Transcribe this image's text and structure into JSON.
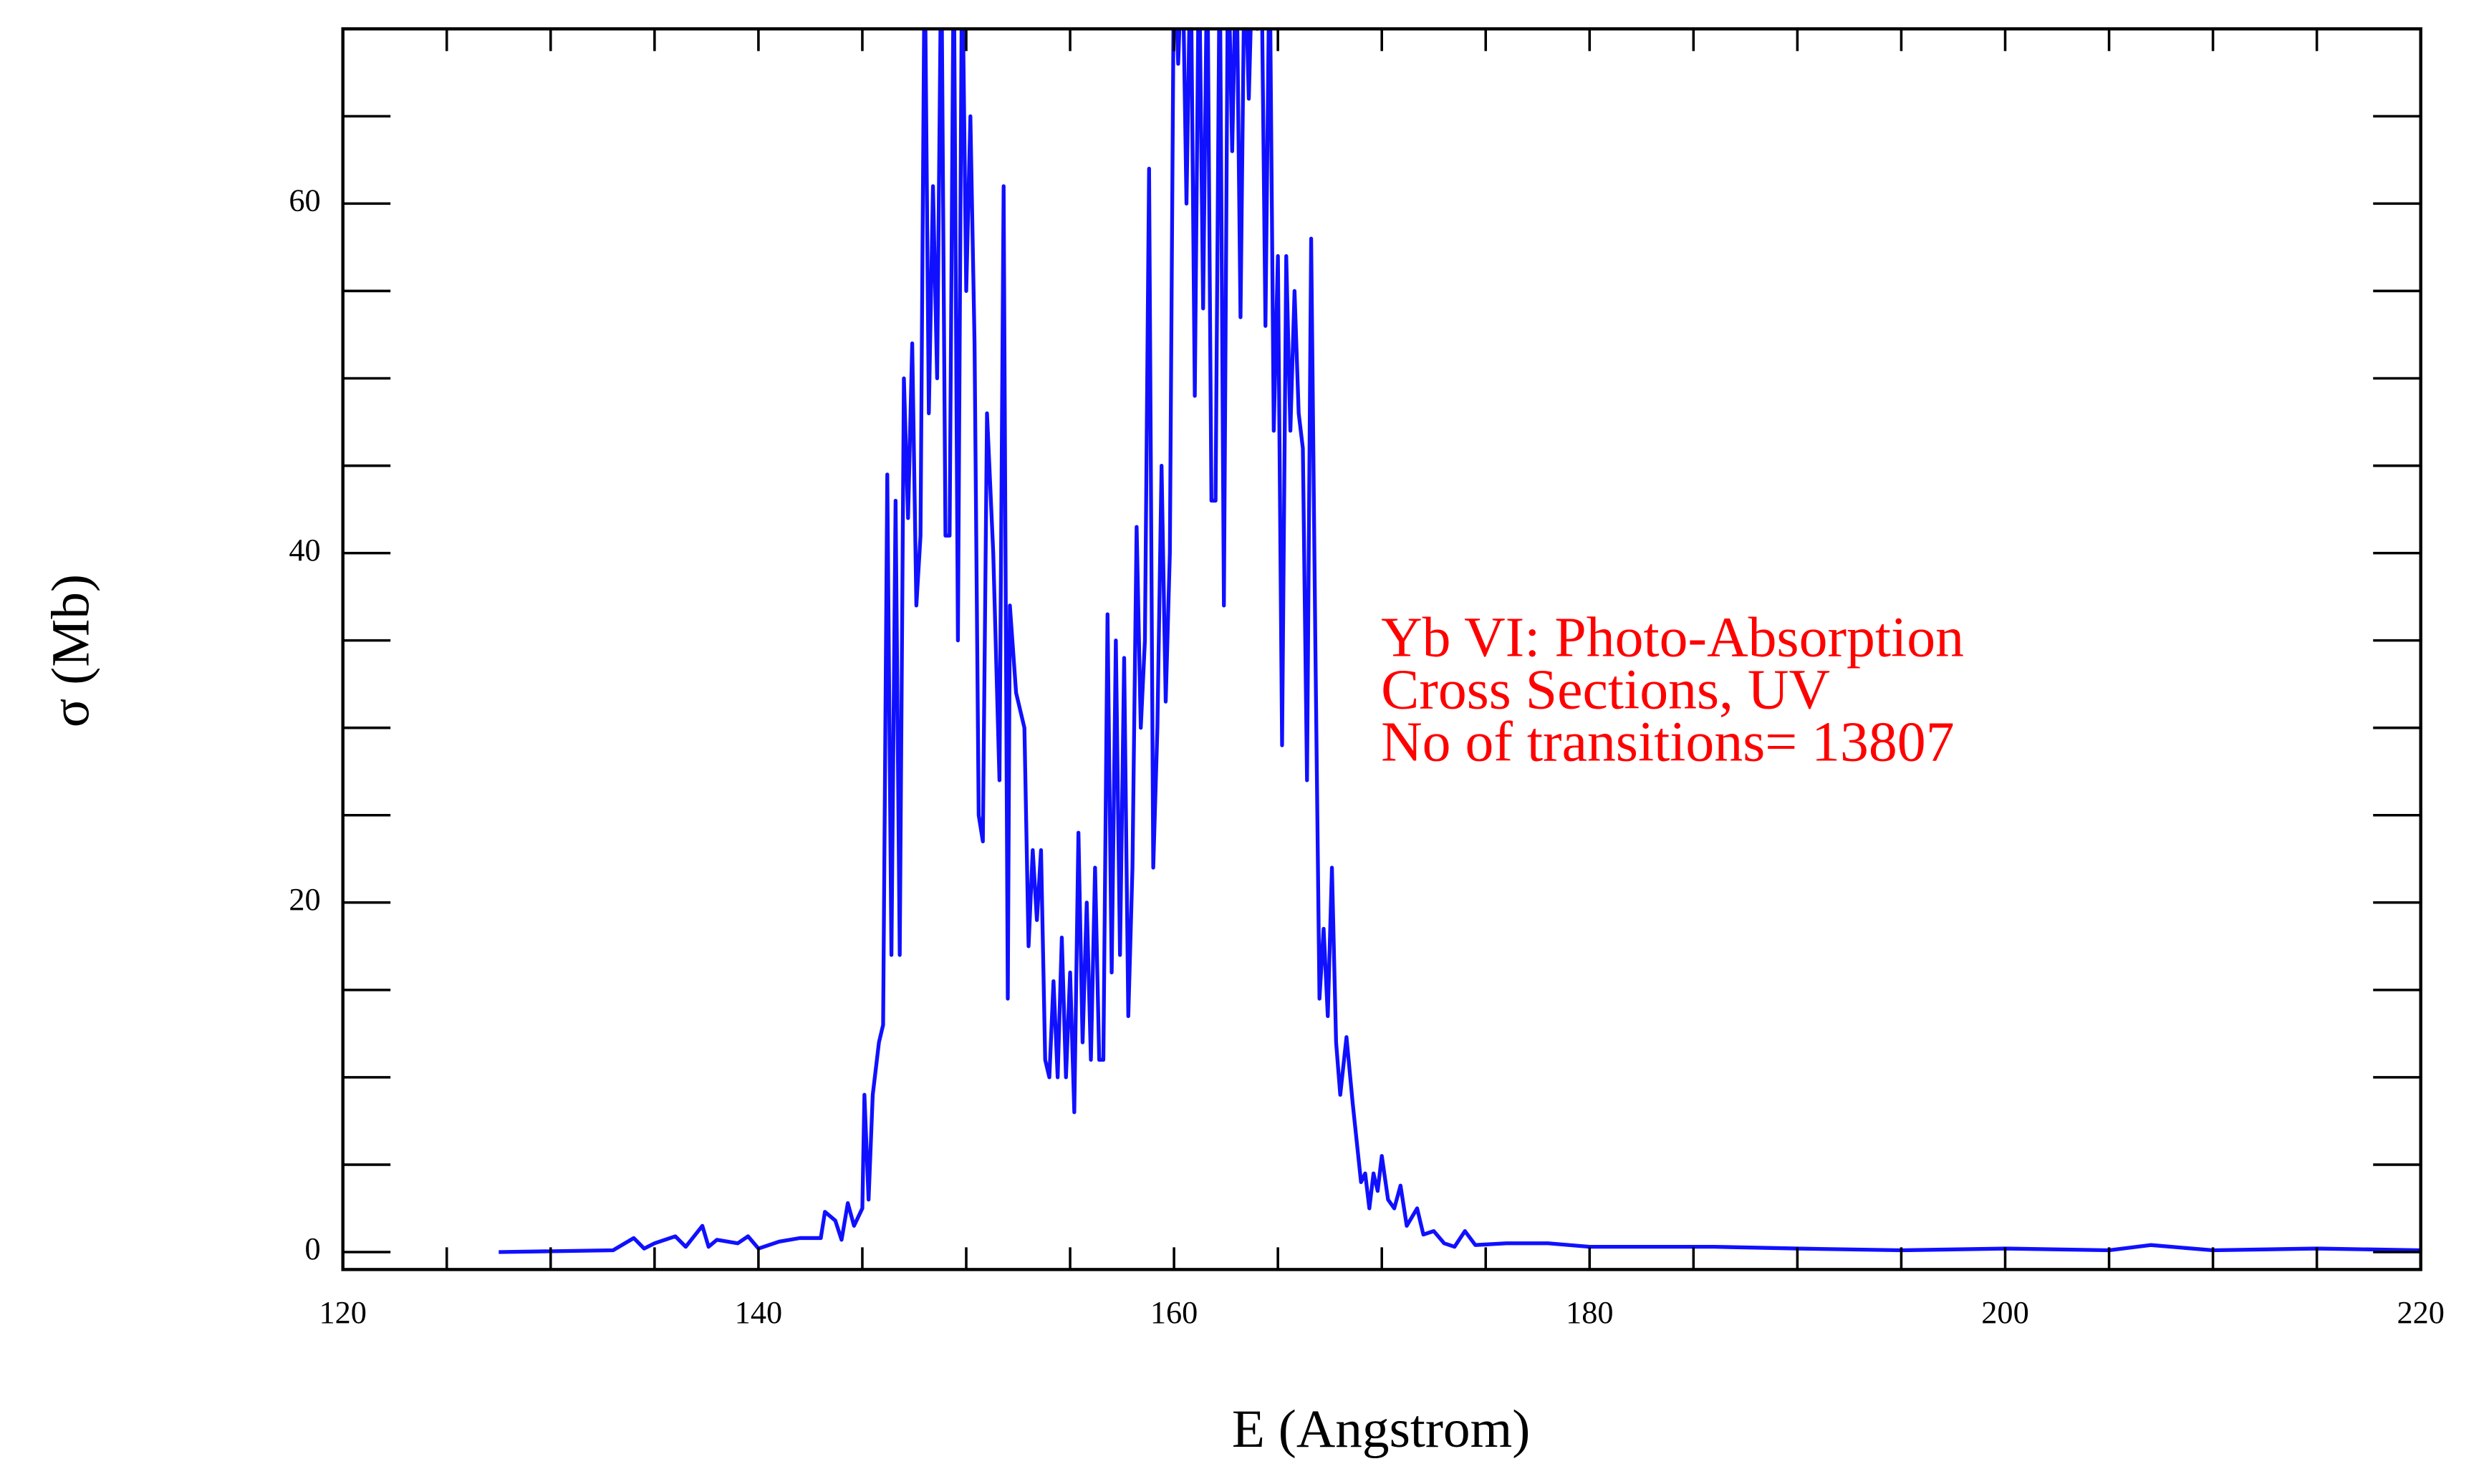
{
  "chart_data": {
    "type": "line",
    "x_label": "E (Angstrom)",
    "y_label": "σ (Mb)",
    "annotation": [
      "Yb VI: Photo-Absorption",
      "Cross Sections, UV",
      "No of transitions= 13807"
    ],
    "color": "#1010ff",
    "xlim": [
      120,
      220
    ],
    "ylim": [
      -1,
      70
    ],
    "xticks": [
      120,
      140,
      160,
      180,
      200,
      220
    ],
    "yticks": [
      0,
      20,
      40,
      60
    ],
    "minor_xticks": [
      125,
      130,
      135,
      145,
      150,
      155,
      165,
      170,
      175,
      185,
      190,
      195,
      205,
      210,
      215
    ],
    "minor_yticks": [
      5,
      10,
      15,
      25,
      30,
      35,
      45,
      50,
      55,
      65,
      70
    ],
    "x": [
      127.5,
      133,
      134,
      134.5,
      135,
      136,
      136.5,
      137.3,
      137.6,
      138,
      139,
      139.5,
      140,
      141,
      142,
      143,
      143.2,
      143.7,
      144,
      144.3,
      144.6,
      145,
      145.1,
      145.3,
      145.5,
      145.8,
      146,
      146.2,
      146.4,
      146.6,
      146.8,
      147,
      147.2,
      147.4,
      147.6,
      147.8,
      148,
      148.2,
      148.4,
      148.6,
      148.8,
      149,
      149.2,
      149.4,
      149.6,
      149.8,
      150,
      150.2,
      150.4,
      150.6,
      150.8,
      151,
      151.3,
      151.6,
      151.8,
      152,
      152.1,
      152.4,
      152.8,
      153,
      153.2,
      153.4,
      153.6,
      153.8,
      154,
      154.2,
      154.4,
      154.6,
      154.8,
      155,
      155.2,
      155.4,
      155.6,
      155.8,
      156,
      156.2,
      156.4,
      156.6,
      156.8,
      157,
      157.2,
      157.4,
      157.6,
      157.8,
      158,
      158.2,
      158.4,
      158.6,
      158.8,
      159,
      159.2,
      159.4,
      159.6,
      159.8,
      160,
      160.2,
      160.4,
      160.6,
      160.8,
      161,
      161.2,
      161.4,
      161.6,
      161.8,
      162,
      162.2,
      162.4,
      162.6,
      162.8,
      163,
      163.2,
      163.4,
      163.6,
      163.8,
      164,
      164.2,
      164.4,
      164.6,
      164.8,
      165,
      165.2,
      165.4,
      165.6,
      165.8,
      166,
      166.2,
      166.4,
      166.6,
      166.8,
      167,
      167.2,
      167.4,
      167.6,
      167.8,
      168,
      168.3,
      168.6,
      169,
      169.2,
      169.4,
      169.6,
      169.8,
      170,
      170.3,
      170.6,
      170.9,
      171.2,
      171.7,
      172,
      172.5,
      173,
      173.5,
      174,
      174.5,
      176,
      178,
      180,
      183,
      186,
      190,
      195,
      200,
      205,
      207,
      210,
      215,
      220
    ],
    "values": [
      0,
      0.1,
      0.8,
      0.2,
      0.5,
      0.9,
      0.3,
      1.5,
      0.3,
      0.7,
      0.5,
      0.9,
      0.2,
      0.6,
      0.8,
      0.8,
      2.3,
      1.8,
      0.7,
      2.8,
      1.5,
      2.5,
      9,
      3,
      9,
      12,
      13,
      44.5,
      17,
      43,
      17,
      50,
      42,
      52,
      37,
      41,
      75,
      48,
      61,
      50,
      75,
      41,
      41,
      75,
      35,
      75,
      55,
      65,
      52,
      25,
      23.5,
      48,
      40,
      27,
      61,
      14.5,
      37,
      32,
      30,
      17.5,
      23,
      19,
      23,
      11,
      10,
      15.5,
      10,
      18,
      10,
      16,
      8,
      24,
      12,
      20,
      11,
      22,
      11,
      11,
      36.5,
      16,
      35,
      17,
      34,
      13.5,
      22,
      41.5,
      30,
      35,
      62,
      22,
      30,
      45,
      31.5,
      40,
      75,
      68,
      75,
      60,
      75,
      49,
      75,
      54,
      75,
      43,
      43,
      75,
      37,
      75,
      63,
      75,
      53.5,
      75,
      66,
      75,
      70,
      75,
      53,
      75,
      47,
      57,
      29,
      57,
      47,
      55,
      48,
      46,
      27,
      58,
      35,
      14.5,
      18.5,
      13.5,
      22,
      12,
      9,
      12.3,
      8.5,
      4,
      4.5,
      2.5,
      4.5,
      3.5,
      5.5,
      3,
      2.5,
      3.8,
      1.5,
      2.5,
      1,
      1.2,
      0.5,
      0.3,
      1.2,
      0.4,
      0.5,
      0.5,
      0.3,
      0.3,
      0.3,
      0.2,
      0.1,
      0.2,
      0.1,
      0.4,
      0.1,
      0.2,
      0.1
    ]
  }
}
